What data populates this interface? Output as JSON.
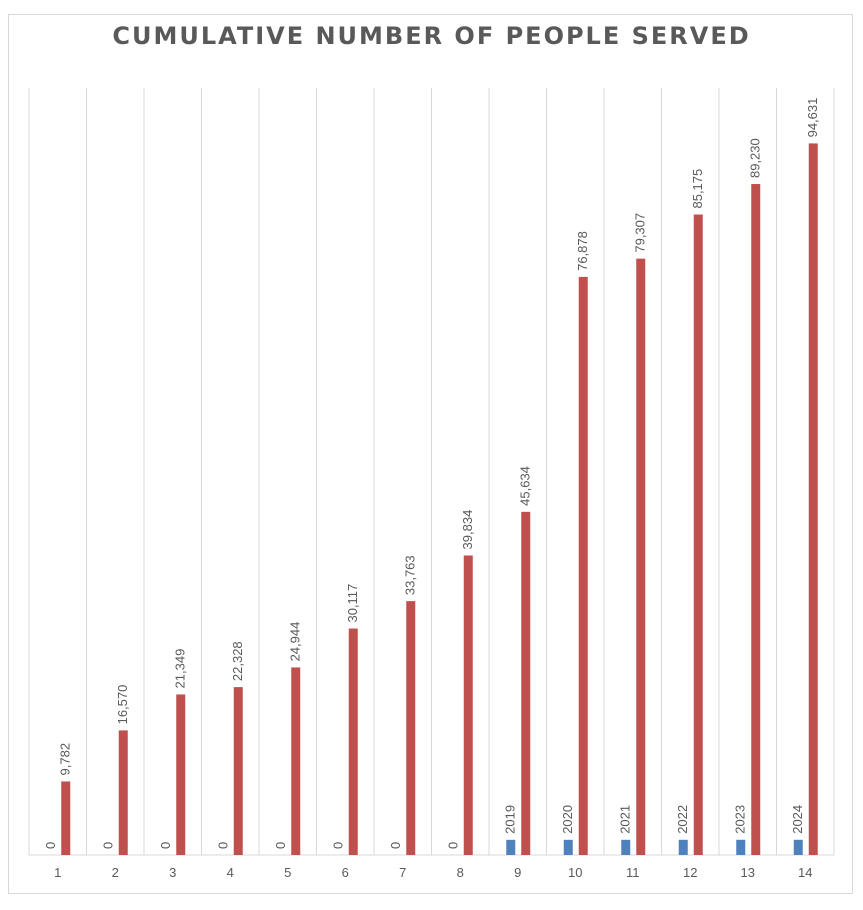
{
  "chart_data": {
    "type": "bar",
    "title": "CUMULATIVE NUMBER OF PEOPLE SERVED",
    "xlabel": "",
    "ylabel": "",
    "categories": [
      "1",
      "2",
      "3",
      "4",
      "5",
      "6",
      "7",
      "8",
      "9",
      "10",
      "11",
      "12",
      "13",
      "14"
    ],
    "series": [
      {
        "values": [
          0,
          0,
          0,
          0,
          0,
          0,
          0,
          0,
          2019,
          2020,
          2021,
          2022,
          2023,
          2024
        ],
        "labels": [
          "0",
          "0",
          "0",
          "0",
          "0",
          "0",
          "0",
          "0",
          "2019",
          "2020",
          "2021",
          "2022",
          "2023",
          "2024"
        ],
        "color": "#4f81bd"
      },
      {
        "values": [
          9782,
          16570,
          21349,
          22328,
          24944,
          30117,
          33763,
          39834,
          45634,
          76878,
          79307,
          85175,
          89230,
          94631
        ],
        "labels": [
          "9,782",
          "16,570",
          "21,349",
          "22,328",
          "24,944",
          "30,117",
          "33,763",
          "39,834",
          "45,634",
          "76,878",
          "79,307",
          "85,175",
          "89,230",
          "94,631"
        ],
        "color": "#c0504d"
      }
    ],
    "ylim": [
      0,
      102000
    ],
    "grid": "vertical",
    "legend": "none"
  }
}
